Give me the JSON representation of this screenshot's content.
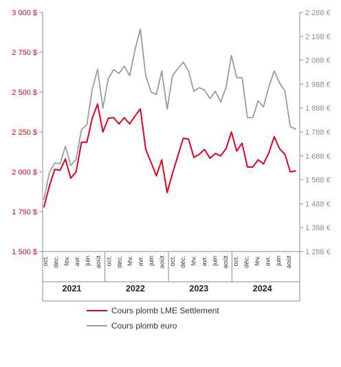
{
  "chart_data": {
    "type": "line",
    "title": "",
    "xlabel": "",
    "ylabel": "",
    "legend_position": "bottom",
    "grid": false,
    "months": [
      "oct.",
      "déc.",
      "fév.",
      "avr.",
      "juin",
      "août"
    ],
    "years": [
      "2021",
      "2022",
      "2023",
      "2024"
    ],
    "y_left": {
      "range": [
        1500,
        3000
      ],
      "ticks": [
        "3 000 $",
        "2 750 $",
        "2 500 $",
        "2 250 $",
        "2 000 $",
        "1 750 $",
        "1 500 $"
      ]
    },
    "y_right": {
      "range": [
        1288,
        2288
      ],
      "ticks": [
        "2 288 €",
        "2 188 €",
        "2 088 €",
        "1 988 €",
        "1 888 €",
        "1 788 €",
        "1 688 €",
        "1 588 €",
        "1 488 €",
        "1 388 €",
        "1 288 €"
      ]
    },
    "series": [
      {
        "name": "Cours plomb LME Settlement",
        "axis": "left",
        "color": "#e2001a",
        "values": [
          1780,
          1910,
          2015,
          2010,
          2080,
          1960,
          2000,
          2185,
          2185,
          2335,
          2425,
          2250,
          2335,
          2340,
          2300,
          2340,
          2300,
          2350,
          2395,
          2140,
          2060,
          1975,
          2075,
          1870,
          1990,
          2100,
          2210,
          2205,
          2090,
          2110,
          2140,
          2085,
          2115,
          2100,
          2145,
          2250,
          2130,
          2180,
          2030,
          2030,
          2075,
          2050,
          2120,
          2220,
          2145,
          2110,
          2000,
          2005
        ]
      },
      {
        "name": "Cours plomb euro",
        "axis": "right",
        "color": "#9b9b9b",
        "values": [
          1505,
          1618,
          1658,
          1655,
          1728,
          1648,
          1673,
          1798,
          1818,
          1965,
          2050,
          1888,
          2010,
          2048,
          2033,
          2063,
          2023,
          2133,
          2218,
          2023,
          1955,
          1945,
          2043,
          1883,
          2023,
          2053,
          2080,
          2043,
          1958,
          1973,
          1963,
          1928,
          1958,
          1913,
          1975,
          2108,
          2015,
          2015,
          1848,
          1848,
          1918,
          1893,
          1978,
          2043,
          1993,
          1958,
          1810,
          1800
        ]
      }
    ]
  }
}
